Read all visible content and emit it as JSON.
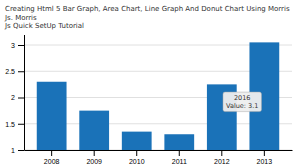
{
  "chart_data": {
    "type": "bar",
    "title": "Creating Html 5 Bar Graph, Area Chart, Line Graph And Donut Chart Using Morris Js. Morris\nJs Quick SetUp Tutorial",
    "categories": [
      "2008",
      "2009",
      "2010",
      "2011",
      "2012",
      "2013"
    ],
    "values": [
      2.3,
      1.75,
      1.35,
      1.3,
      2.25,
      3.05
    ],
    "color": "#1a72b8",
    "ylim": [
      1.0,
      3.2
    ],
    "yticks": [
      1,
      1.5,
      2,
      2.5,
      3
    ],
    "grid": true,
    "annotations": [
      {
        "text": "2016\nValue: 3.1"
      }
    ]
  }
}
